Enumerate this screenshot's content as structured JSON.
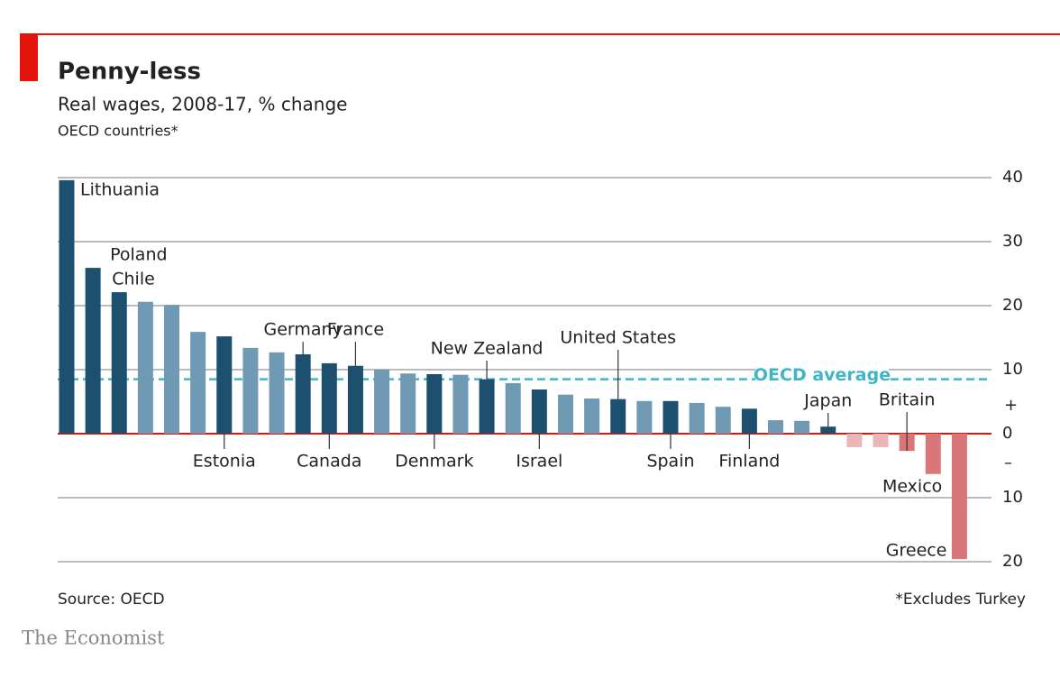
{
  "chart_data": {
    "type": "bar",
    "title": "Penny-less",
    "subtitle": "Real wages, 2008-17, % change",
    "note": "OECD countries*",
    "source": "Source: OECD",
    "footnote": "*Excludes Turkey",
    "brand": "The Economist",
    "categories": [
      "Lithuania",
      "Poland",
      "Chile",
      null,
      null,
      null,
      "Estonia",
      null,
      null,
      "Germany",
      "Canada",
      "France",
      null,
      null,
      "Denmark",
      null,
      "New Zealand",
      null,
      "Israel",
      null,
      null,
      "United States",
      null,
      "Spain",
      null,
      null,
      "Finland",
      null,
      null,
      "Japan",
      null,
      null,
      "Britain",
      "Mexico",
      "Greece"
    ],
    "values": [
      39.6,
      25.9,
      22.1,
      20.6,
      20.1,
      15.9,
      15.2,
      13.4,
      12.7,
      12.4,
      11.0,
      10.6,
      10.0,
      9.4,
      9.3,
      9.2,
      8.5,
      7.9,
      6.9,
      6.1,
      5.5,
      5.4,
      5.1,
      5.1,
      4.8,
      4.2,
      3.9,
      2.1,
      2.0,
      1.1,
      -2.1,
      -2.1,
      -2.7,
      -6.3,
      -19.6
    ],
    "colors": [
      "#1d4f6e",
      "#1d4f6e",
      "#1d4f6e",
      "#7099b3",
      "#7099b3",
      "#7099b3",
      "#1d4f6e",
      "#7099b3",
      "#7099b3",
      "#1d4f6e",
      "#1d4f6e",
      "#1d4f6e",
      "#7099b3",
      "#7099b3",
      "#1d4f6e",
      "#7099b3",
      "#1d4f6e",
      "#7099b3",
      "#1d4f6e",
      "#7099b3",
      "#7099b3",
      "#1d4f6e",
      "#7099b3",
      "#1d4f6e",
      "#7099b3",
      "#7099b3",
      "#1d4f6e",
      "#7099b3",
      "#7099b3",
      "#1d4f6e",
      "#ebb6b6",
      "#ebb6b6",
      "#d9767a",
      "#d9767a",
      "#d9767a"
    ],
    "average": {
      "label": "OECD average",
      "value": 8.5,
      "color": "#3fb6c7"
    },
    "ylim": [
      -20,
      40
    ],
    "yticks": [
      40,
      30,
      20,
      10,
      0,
      {
        "value": -10,
        "label": "10"
      },
      {
        "value": -20,
        "label": "20"
      }
    ],
    "sign_labels": {
      "plus": "+",
      "minus": "–"
    },
    "grid": true
  }
}
